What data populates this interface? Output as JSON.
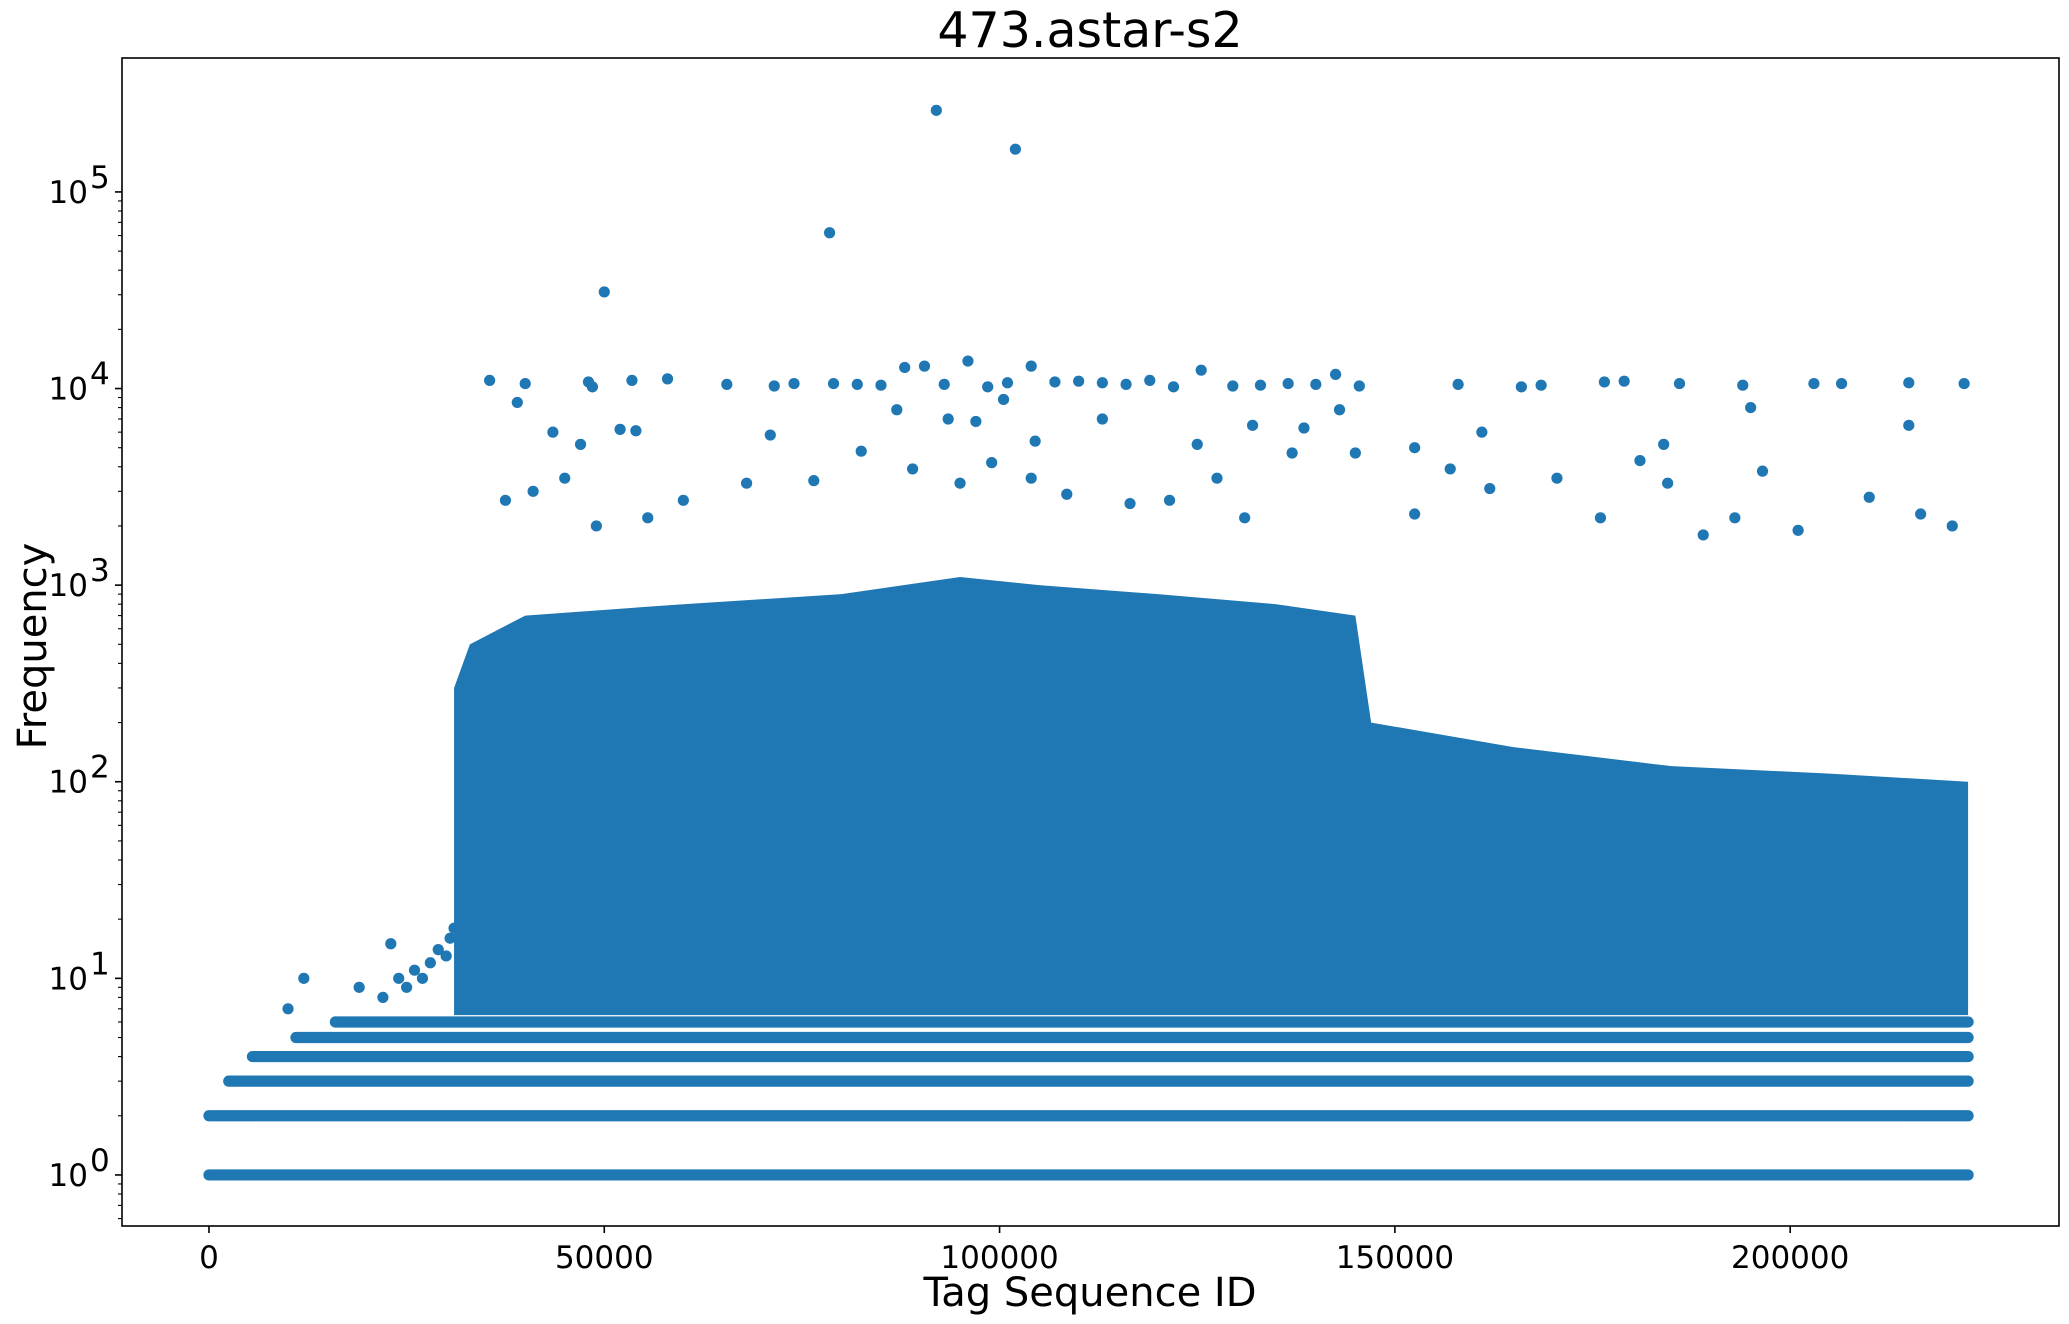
{
  "chart_data": {
    "type": "scatter",
    "title": "473.astar-s2",
    "xlabel": "Tag Sequence ID",
    "ylabel": "Frequency",
    "x_scale": "linear",
    "y_scale": "log",
    "xlim": [
      -11000,
      234000
    ],
    "ylim": [
      0.55,
      480000
    ],
    "grid": false,
    "marker_color": "#1f77b4",
    "x_ticks": [
      {
        "value": 0,
        "label": "0"
      },
      {
        "value": 50000,
        "label": "50000"
      },
      {
        "value": 100000,
        "label": "100000"
      },
      {
        "value": 150000,
        "label": "150000"
      },
      {
        "value": 200000,
        "label": "200000"
      }
    ],
    "y_ticks": [
      {
        "value": 1,
        "base": "10",
        "exp": "0"
      },
      {
        "value": 10,
        "base": "10",
        "exp": "1"
      },
      {
        "value": 100,
        "base": "10",
        "exp": "2"
      },
      {
        "value": 1000,
        "base": "10",
        "exp": "3"
      },
      {
        "value": 10000,
        "base": "10",
        "exp": "4"
      },
      {
        "value": 100000,
        "base": "10",
        "exp": "5"
      }
    ],
    "dense_bands": [
      {
        "x": [
          0,
          222500
        ],
        "y": 1
      },
      {
        "x": [
          0,
          222500
        ],
        "y": 2
      },
      {
        "x": [
          2500,
          222500
        ],
        "y": 3
      },
      {
        "x": [
          5500,
          222500
        ],
        "y": 4
      },
      {
        "x": [
          11000,
          222500
        ],
        "y": 5
      },
      {
        "x": [
          16000,
          222500
        ],
        "y": 6
      }
    ],
    "dense_region": {
      "x": [
        31000,
        222500
      ],
      "y_range": [
        6.5,
        100
      ],
      "upper_envelope": [
        [
          31000,
          300
        ],
        [
          33000,
          500
        ],
        [
          40000,
          700
        ],
        [
          60000,
          800
        ],
        [
          80000,
          900
        ],
        [
          95000,
          1100
        ],
        [
          105000,
          1000
        ],
        [
          120000,
          900
        ],
        [
          135000,
          800
        ],
        [
          145000,
          700
        ],
        [
          147000,
          200
        ],
        [
          165000,
          150
        ],
        [
          185000,
          120
        ],
        [
          205000,
          110
        ],
        [
          222500,
          100
        ]
      ]
    },
    "ramp_points": [
      [
        10000,
        7
      ],
      [
        12000,
        10
      ],
      [
        16000,
        6
      ],
      [
        19000,
        9
      ],
      [
        22000,
        8
      ],
      [
        23000,
        15
      ],
      [
        24000,
        10
      ],
      [
        25000,
        9
      ],
      [
        26000,
        11
      ],
      [
        27000,
        10
      ],
      [
        28000,
        12
      ],
      [
        29000,
        14
      ],
      [
        30000,
        13
      ],
      [
        30500,
        16
      ],
      [
        31000,
        18
      ]
    ],
    "outliers": [
      [
        92000,
        260000
      ],
      [
        102000,
        165000
      ],
      [
        78500,
        62000
      ],
      [
        50000,
        31000
      ],
      [
        35500,
        11000
      ],
      [
        40000,
        10600
      ],
      [
        48000,
        10800
      ],
      [
        53500,
        11000
      ],
      [
        58000,
        11200
      ],
      [
        65500,
        10500
      ],
      [
        71500,
        10300
      ],
      [
        74000,
        10600
      ],
      [
        79000,
        10600
      ],
      [
        82000,
        10500
      ],
      [
        85000,
        10400
      ],
      [
        88000,
        12800
      ],
      [
        90500,
        13000
      ],
      [
        93000,
        10500
      ],
      [
        96000,
        13800
      ],
      [
        98500,
        10200
      ],
      [
        101000,
        10700
      ],
      [
        104000,
        13000
      ],
      [
        107000,
        10800
      ],
      [
        110000,
        10900
      ],
      [
        113000,
        10700
      ],
      [
        116000,
        10500
      ],
      [
        119000,
        11000
      ],
      [
        122000,
        10200
      ],
      [
        125500,
        12400
      ],
      [
        129500,
        10300
      ],
      [
        133000,
        10400
      ],
      [
        136500,
        10600
      ],
      [
        140000,
        10500
      ],
      [
        142500,
        11800
      ],
      [
        145500,
        10300
      ],
      [
        158000,
        10500
      ],
      [
        166000,
        10200
      ],
      [
        168500,
        10400
      ],
      [
        176500,
        10800
      ],
      [
        179000,
        10900
      ],
      [
        186000,
        10600
      ],
      [
        194000,
        10400
      ],
      [
        203000,
        10600
      ],
      [
        206500,
        10600
      ],
      [
        215000,
        10700
      ],
      [
        222000,
        10600
      ],
      [
        39000,
        8500
      ],
      [
        43500,
        6000
      ],
      [
        47000,
        5200
      ],
      [
        52000,
        6200
      ],
      [
        54000,
        6100
      ],
      [
        48500,
        10200
      ],
      [
        71000,
        5800
      ],
      [
        87000,
        7800
      ],
      [
        93500,
        7000
      ],
      [
        97000,
        6800
      ],
      [
        100500,
        8800
      ],
      [
        104500,
        5400
      ],
      [
        113000,
        7000
      ],
      [
        125000,
        5200
      ],
      [
        132000,
        6500
      ],
      [
        138500,
        6300
      ],
      [
        143000,
        7800
      ],
      [
        145000,
        4700
      ],
      [
        152500,
        5000
      ],
      [
        161000,
        6000
      ],
      [
        184000,
        5200
      ],
      [
        195000,
        8000
      ],
      [
        215000,
        6500
      ],
      [
        37500,
        2700
      ],
      [
        41000,
        3000
      ],
      [
        45000,
        3500
      ],
      [
        49000,
        2000
      ],
      [
        55500,
        2200
      ],
      [
        60000,
        2700
      ],
      [
        68000,
        3300
      ],
      [
        76500,
        3400
      ],
      [
        82500,
        4800
      ],
      [
        89000,
        3900
      ],
      [
        95000,
        3300
      ],
      [
        99000,
        4200
      ],
      [
        104000,
        3500
      ],
      [
        108500,
        2900
      ],
      [
        116500,
        2600
      ],
      [
        121500,
        2700
      ],
      [
        127500,
        3500
      ],
      [
        131000,
        2200
      ],
      [
        137000,
        4700
      ],
      [
        152500,
        2300
      ],
      [
        157000,
        3900
      ],
      [
        162000,
        3100
      ],
      [
        170500,
        3500
      ],
      [
        176000,
        2200
      ],
      [
        181000,
        4300
      ],
      [
        184500,
        3300
      ],
      [
        189000,
        1800
      ],
      [
        193000,
        2200
      ],
      [
        196500,
        3800
      ],
      [
        201000,
        1900
      ],
      [
        210000,
        2800
      ],
      [
        216500,
        2300
      ],
      [
        220500,
        2000
      ]
    ]
  }
}
